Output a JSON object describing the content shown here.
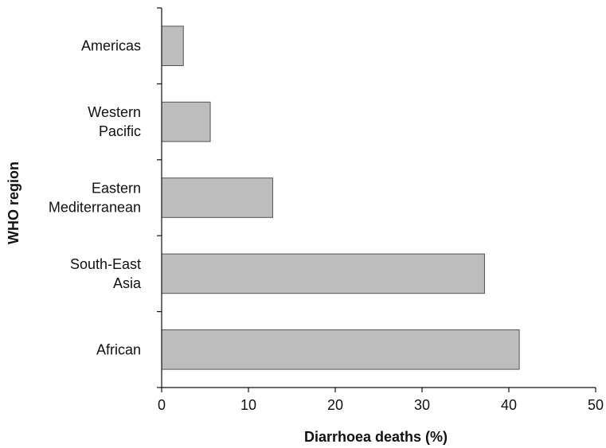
{
  "chart_data": {
    "type": "bar",
    "orientation": "horizontal",
    "categories": [
      [
        "Americas"
      ],
      [
        "Western",
        "Pacific"
      ],
      [
        "Eastern",
        "Mediterranean"
      ],
      [
        "South-East",
        "Asia"
      ],
      [
        "African"
      ]
    ],
    "values": [
      2.5,
      5.6,
      12.8,
      37.2,
      41.2
    ],
    "title": "",
    "xlabel": "Diarrhoea deaths (%)",
    "ylabel": "WHO region",
    "xlim": [
      0,
      50
    ],
    "xticks": [
      0,
      10,
      20,
      30,
      40,
      50
    ],
    "grid": false,
    "legend": "none",
    "colors": {
      "bar_fill": "#bdbdbe",
      "bar_edge": "#555555",
      "axis": "#111111",
      "text": "#111111",
      "background": "#ffffff"
    }
  }
}
